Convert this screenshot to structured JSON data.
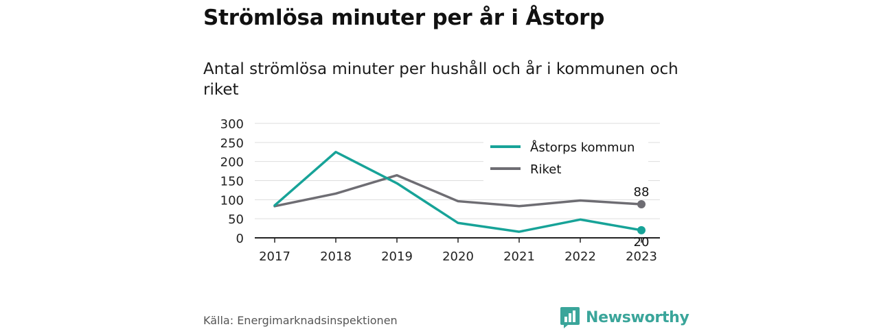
{
  "header": {
    "title": "Strömlösa minuter per år i Åstorp",
    "subtitle": "Antal strömlösa minuter per hushåll och år i kommunen och riket"
  },
  "footer": {
    "source": "Källa: Energimarknadsinspektionen",
    "brand": "Newsworthy",
    "brand_color": "#3aa59a"
  },
  "chart_data": {
    "type": "line",
    "x": [
      "2017",
      "2018",
      "2019",
      "2020",
      "2021",
      "2022",
      "2023"
    ],
    "ylim": [
      0,
      300
    ],
    "yticks": [
      0,
      50,
      100,
      150,
      200,
      250,
      300
    ],
    "grid": true,
    "legend_position": "top-right",
    "series": [
      {
        "name": "Åstorps kommun",
        "color": "#17a398",
        "values": [
          85,
          225,
          143,
          39,
          16,
          48,
          20
        ],
        "end_label": "20"
      },
      {
        "name": "Riket",
        "color": "#6e6d73",
        "values": [
          83,
          116,
          164,
          96,
          83,
          98,
          88
        ],
        "end_label": "88"
      }
    ]
  }
}
